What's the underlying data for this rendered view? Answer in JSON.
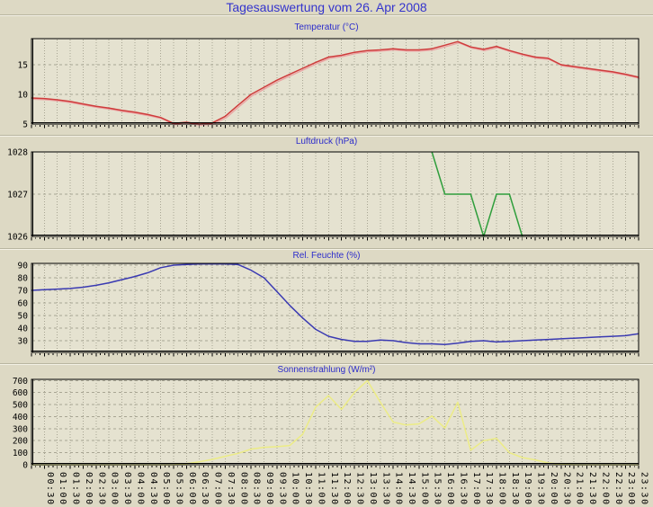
{
  "title": "Tagesauswertung vom 26. Apr 2008",
  "colors": {
    "page_bg": "#ddd9c4",
    "plot_bg": "#e5e2d0",
    "grid": "#a8a593",
    "axis": "#000000",
    "main_title_text": "#3434cd",
    "chart_title_text": "#2c2ccb",
    "temperature_line": "#cf3b3b",
    "temperature_shadow": "#eba3a3",
    "pressure_line": "#2f9e3c",
    "humidity_line": "#3a3ab2",
    "sun_line": "#ecec85"
  },
  "x_values": [
    "00:00",
    "00:30",
    "01:00",
    "01:30",
    "02:00",
    "02:30",
    "03:00",
    "03:30",
    "04:00",
    "04:30",
    "05:00",
    "05:30",
    "06:00",
    "06:30",
    "07:00",
    "07:30",
    "08:00",
    "08:30",
    "09:00",
    "09:30",
    "10:00",
    "10:30",
    "11:00",
    "11:30",
    "12:00",
    "12:30",
    "13:00",
    "13:30",
    "14:00",
    "14:30",
    "15:00",
    "15:30",
    "16:00",
    "16:30",
    "17:00",
    "17:30",
    "18:00",
    "18:30",
    "19:00",
    "19:30",
    "20:00",
    "20:30",
    "21:00",
    "21:30",
    "22:00",
    "22:30",
    "23:00",
    "23:30"
  ],
  "x_labels": [
    "00:30",
    "01:00",
    "01:30",
    "02:00",
    "02:30",
    "03:00",
    "03:30",
    "04:00",
    "04:30",
    "05:00",
    "05:30",
    "06:00",
    "06:30",
    "07:00",
    "07:30",
    "08:00",
    "08:30",
    "09:00",
    "09:30",
    "10:00",
    "10:30",
    "11:00",
    "11:30",
    "12:00",
    "12:30",
    "13:00",
    "13:30",
    "14:00",
    "14:30",
    "15:00",
    "15:30",
    "16:00",
    "16:30",
    "17:00",
    "17:30",
    "18:00",
    "18:30",
    "19:00",
    "19:30",
    "20:00",
    "20:30",
    "21:00",
    "21:30",
    "22:00",
    "22:30",
    "23:00",
    "23:30"
  ],
  "chart_data": [
    {
      "type": "line",
      "key": "temperature",
      "title": "Temperatur (°C)",
      "color": "#cf3b3b",
      "shadow": "#eba3a3",
      "ylim": [
        5,
        19.4
      ],
      "yticks": [
        5,
        10,
        15
      ],
      "grid_values": [
        10,
        15
      ],
      "values": [
        9.4,
        9.3,
        9.1,
        8.8,
        8.4,
        8.0,
        7.7,
        7.3,
        7.0,
        6.6,
        6.1,
        5.1,
        5.3,
        5.0,
        5.2,
        6.3,
        8.2,
        10.0,
        11.2,
        12.4,
        13.4,
        14.4,
        15.4,
        16.3,
        16.6,
        17.1,
        17.4,
        17.5,
        17.7,
        17.5,
        17.5,
        17.7,
        18.3,
        18.9,
        18.0,
        17.6,
        18.1,
        17.4,
        16.8,
        16.3,
        16.1,
        15.0,
        14.7,
        14.4,
        14.1,
        13.8,
        13.4,
        12.9
      ]
    },
    {
      "type": "line",
      "key": "pressure",
      "title": "Luftdruck (hPa)",
      "color": "#2f9e3c",
      "shadow": null,
      "ylim": [
        1026,
        1028
      ],
      "yticks": [
        1026,
        1027,
        1028
      ],
      "grid_values": [
        1027
      ],
      "values": [
        null,
        null,
        null,
        null,
        null,
        null,
        null,
        null,
        null,
        null,
        null,
        null,
        null,
        null,
        null,
        null,
        null,
        null,
        null,
        null,
        null,
        null,
        null,
        null,
        null,
        null,
        null,
        null,
        null,
        null,
        null,
        1028,
        1027,
        1027,
        1027,
        1026,
        1027,
        1027,
        1026,
        null,
        null,
        null,
        null,
        null,
        null,
        null,
        null,
        null
      ]
    },
    {
      "type": "line",
      "key": "humidity",
      "title": "Rel. Feuchte (%)",
      "color": "#3a3ab2",
      "shadow": null,
      "ylim": [
        20.7,
        91.4
      ],
      "yticks": [
        30,
        40,
        50,
        60,
        70,
        80,
        90
      ],
      "grid_values": [
        30,
        40,
        50,
        60,
        70,
        80,
        90
      ],
      "values": [
        70,
        70.5,
        71,
        71.5,
        72.5,
        74,
        76,
        78.5,
        81,
        84,
        88,
        90,
        90.5,
        91,
        91,
        91,
        90.5,
        86,
        80,
        69,
        58,
        48,
        39,
        33.5,
        31,
        29.5,
        29.5,
        30.5,
        30,
        28.5,
        27.5,
        27.5,
        27,
        28,
        29.5,
        30,
        29,
        29.5,
        30,
        30.5,
        31,
        31.5,
        32,
        32.5,
        33,
        33.5,
        34,
        35.5
      ]
    },
    {
      "type": "line",
      "key": "sun",
      "title": "Sonnenstrahlung (W/m²)",
      "color": "#ecec85",
      "shadow": null,
      "ylim": [
        0,
        710
      ],
      "yticks": [
        0,
        100,
        200,
        300,
        400,
        500,
        600,
        700
      ],
      "grid_values": [
        100,
        200,
        300,
        400,
        500,
        600,
        700
      ],
      "values": [
        0,
        0,
        0,
        0,
        0,
        0,
        0,
        0,
        0,
        0,
        0,
        0,
        10,
        25,
        45,
        70,
        95,
        130,
        145,
        150,
        160,
        255,
        480,
        575,
        460,
        600,
        700,
        520,
        355,
        330,
        340,
        405,
        305,
        520,
        120,
        200,
        220,
        100,
        60,
        40,
        15,
        5,
        0,
        0,
        0,
        0,
        0,
        0
      ]
    }
  ]
}
